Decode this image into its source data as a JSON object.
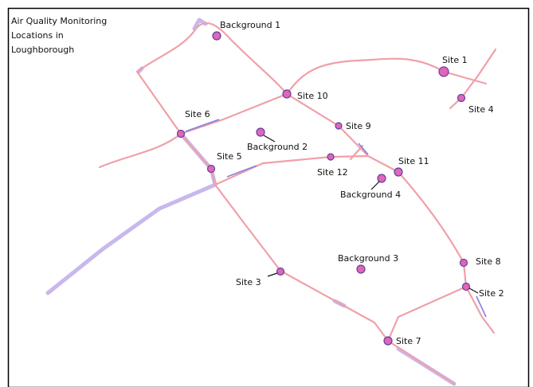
{
  "title": [
    "Air Quality Monitoring",
    "Locations in",
    "Loughborough"
  ],
  "sites": [
    "Background 1",
    "Site 1",
    "Site 10",
    "Site 4",
    "Site 6",
    "Site 9",
    "Background 2",
    "Site 5",
    "Site 11",
    "Site 12",
    "Background 4",
    "Background 3",
    "Site 8",
    "Site 3",
    "Site 2",
    "Site 7"
  ]
}
